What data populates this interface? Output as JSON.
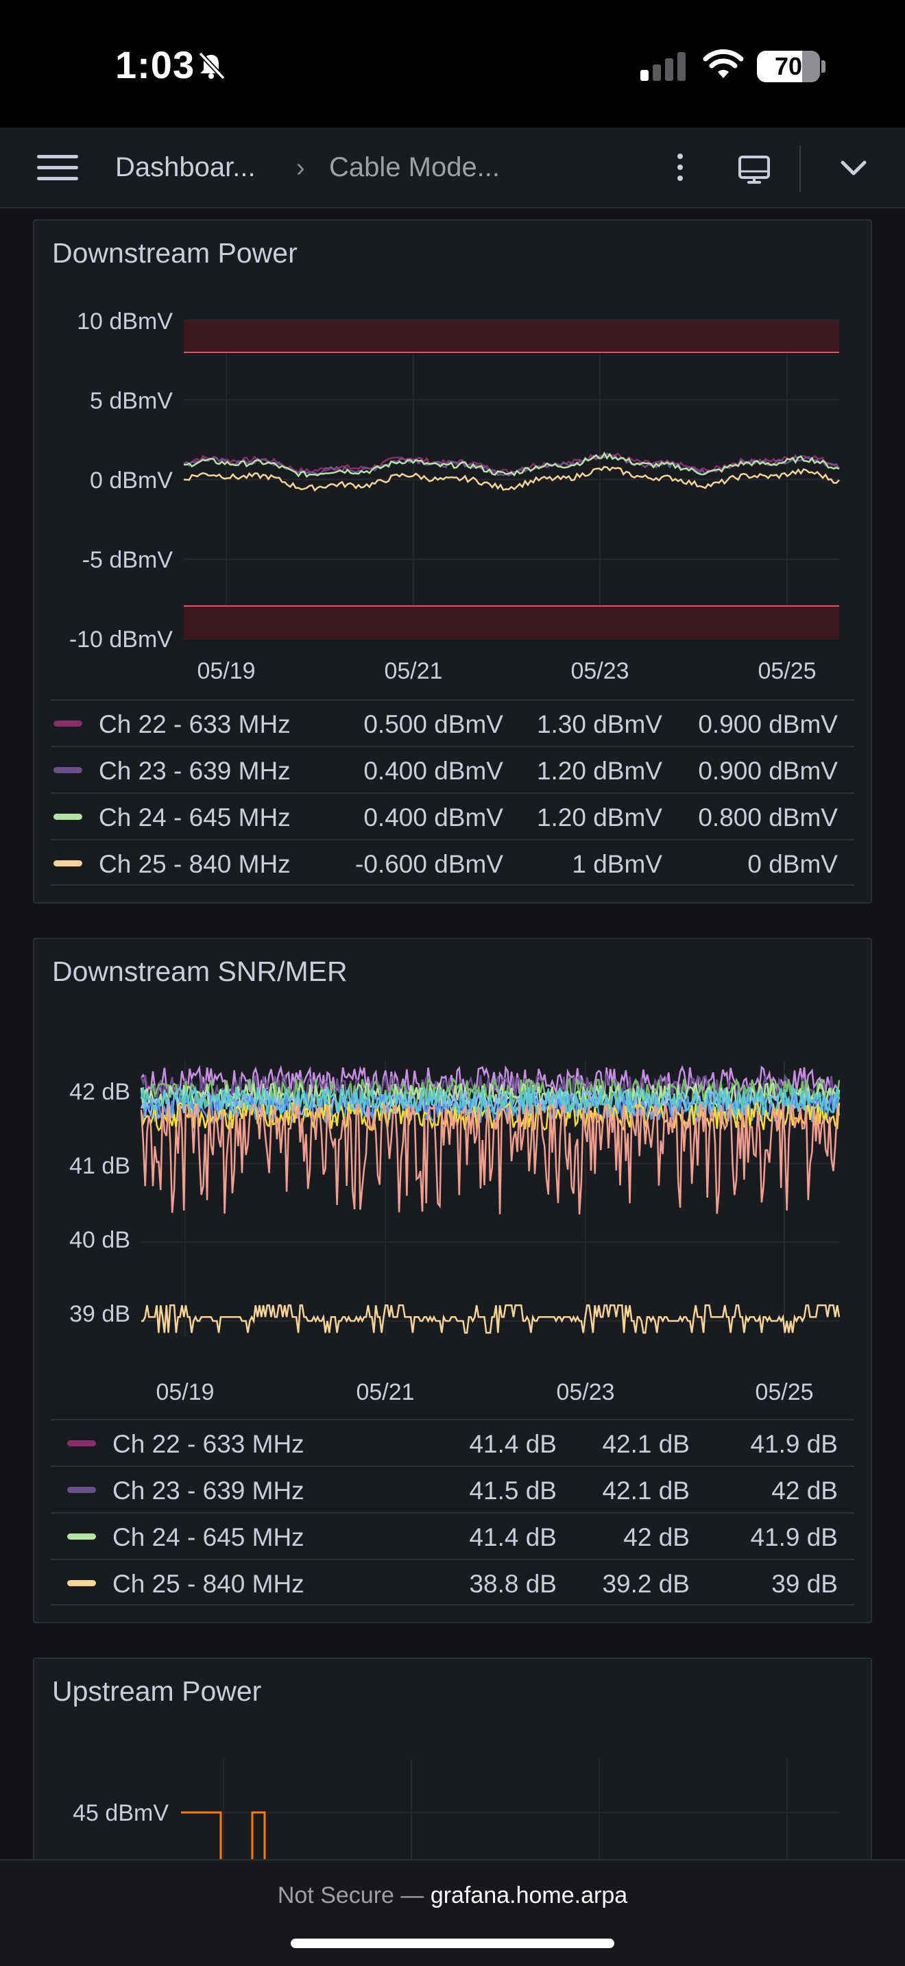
{
  "status_bar": {
    "time": "1:03",
    "battery": "70"
  },
  "nav": {
    "crumb_1": "Dashboar...",
    "separator": "›",
    "crumb_2": "Cable Mode..."
  },
  "icons": [
    "menu-icon",
    "bell-slash-icon",
    "signal-icon",
    "wifi-icon",
    "more-icon",
    "monitor-icon",
    "chevron-down-icon"
  ],
  "colors": {
    "ch22": "#8c2b6a",
    "ch23": "#6e4f8e",
    "ch24": "#b5e3a1",
    "ch25": "#f8d396",
    "snr_ch22_line": "#f29e8e",
    "threshold": "#f2495c",
    "upstream": "#ff780a"
  },
  "panels": {
    "downstream_power": {
      "title": "Downstream Power",
      "y_ticks": [
        "10 dBmV",
        "5 dBmV",
        "0 dBmV",
        "-5 dBmV",
        "-10 dBmV"
      ],
      "x_ticks": [
        "05/19",
        "05/21",
        "05/23",
        "05/25"
      ],
      "legend": [
        {
          "name": "Ch 22 - 633 MHz",
          "v1": "0.500 dBmV",
          "v2": "1.30 dBmV",
          "v3": "0.900 dBmV"
        },
        {
          "name": "Ch 23 - 639 MHz",
          "v1": "0.400 dBmV",
          "v2": "1.20 dBmV",
          "v3": "0.900 dBmV"
        },
        {
          "name": "Ch 24 - 645 MHz",
          "v1": "0.400 dBmV",
          "v2": "1.20 dBmV",
          "v3": "0.800 dBmV"
        },
        {
          "name": "Ch 25 - 840 MHz",
          "v1": "-0.600 dBmV",
          "v2": "1 dBmV",
          "v3": "0 dBmV"
        }
      ]
    },
    "downstream_snr": {
      "title": "Downstream SNR/MER",
      "y_ticks": [
        "42 dB",
        "41 dB",
        "40 dB",
        "39 dB"
      ],
      "x_ticks": [
        "05/19",
        "05/21",
        "05/23",
        "05/25"
      ],
      "legend": [
        {
          "name": "Ch 22 - 633 MHz",
          "v1": "41.4 dB",
          "v2": "42.1 dB",
          "v3": "41.9 dB"
        },
        {
          "name": "Ch 23 - 639 MHz",
          "v1": "41.5 dB",
          "v2": "42.1 dB",
          "v3": "42 dB"
        },
        {
          "name": "Ch 24 - 645 MHz",
          "v1": "41.4 dB",
          "v2": "42 dB",
          "v3": "41.9 dB"
        },
        {
          "name": "Ch 25 - 840 MHz",
          "v1": "38.8 dB",
          "v2": "39.2 dB",
          "v3": "39 dB"
        }
      ]
    },
    "upstream_power": {
      "title": "Upstream Power",
      "y_ticks": [
        "45 dBmV"
      ]
    }
  },
  "chart_data": [
    {
      "type": "line",
      "title": "Downstream Power",
      "xlabel": "",
      "ylabel": "",
      "x": [
        "05/19",
        "05/21",
        "05/23",
        "05/25"
      ],
      "ylim": [
        -10,
        10
      ],
      "thresholds": [
        {
          "from": 8,
          "to": 10
        },
        {
          "from": -10,
          "to": -8
        }
      ],
      "series": [
        {
          "name": "Ch 22 - 633 MHz",
          "values": [
            1.0,
            0.9,
            1.1,
            1.0
          ]
        },
        {
          "name": "Ch 23 - 639 MHz",
          "values": [
            0.9,
            0.8,
            1.0,
            0.9
          ]
        },
        {
          "name": "Ch 24 - 645 MHz",
          "values": [
            0.8,
            0.7,
            1.0,
            0.8
          ]
        },
        {
          "name": "Ch 25 - 840 MHz",
          "values": [
            0.0,
            -0.2,
            0.2,
            0.0
          ]
        }
      ]
    },
    {
      "type": "line",
      "title": "Downstream SNR/MER",
      "xlabel": "",
      "ylabel": "",
      "x": [
        "05/19",
        "05/21",
        "05/23",
        "05/25"
      ],
      "ylim": [
        38.8,
        42.3
      ],
      "series": [
        {
          "name": "Ch 22 - 633 MHz",
          "values": [
            41.9,
            41.9,
            41.9,
            41.9
          ]
        },
        {
          "name": "Ch 23 - 639 MHz",
          "values": [
            42.0,
            42.0,
            42.0,
            42.0
          ]
        },
        {
          "name": "Ch 24 - 645 MHz",
          "values": [
            41.9,
            41.9,
            41.9,
            41.9
          ]
        },
        {
          "name": "Ch 25 - 840 MHz",
          "values": [
            39.0,
            39.0,
            39.0,
            39.0
          ]
        }
      ]
    },
    {
      "type": "line",
      "title": "Upstream Power",
      "xlabel": "",
      "ylabel": "",
      "series": [
        {
          "values": [
            45,
            45
          ]
        }
      ]
    }
  ],
  "footer": {
    "not_secure": "Not Secure —",
    "domain": "grafana.home.arpa"
  }
}
